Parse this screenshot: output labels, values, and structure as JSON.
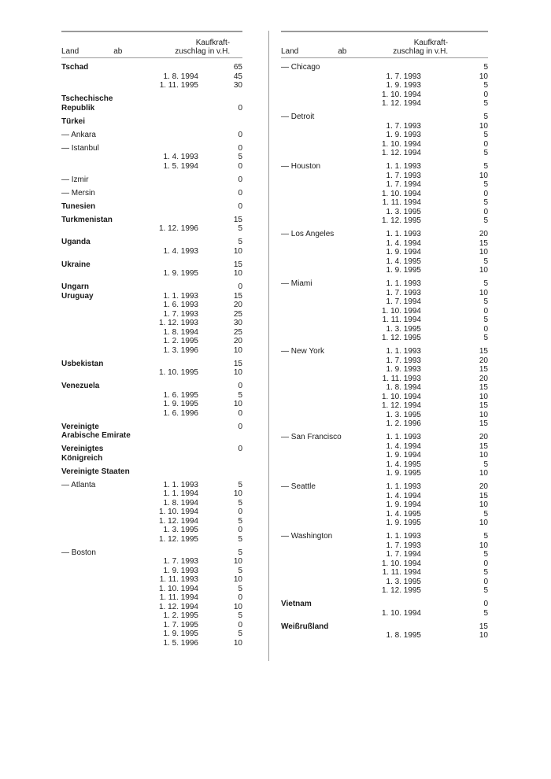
{
  "header": {
    "land": "Land",
    "ab": "ab",
    "val_line1": "Kaufkraft-",
    "val_line2": "zuschlag in v.H."
  },
  "left": [
    {
      "bold": true,
      "rows": [
        {
          "land": "Tschad",
          "ab": "",
          "val": "65"
        },
        {
          "land": "",
          "ab": "1. 8. 1994",
          "val": "45"
        },
        {
          "land": "",
          "ab": "1. 11. 1995",
          "val": "30"
        }
      ]
    },
    {
      "bold": true,
      "rows": [
        {
          "land": "Tschechische",
          "ab": "",
          "val": ""
        },
        {
          "land": "Republik",
          "ab": "",
          "val": "0"
        }
      ]
    },
    {
      "bold": true,
      "rows": [
        {
          "land": "Türkei",
          "ab": "",
          "val": ""
        }
      ]
    },
    {
      "bold": false,
      "rows": [
        {
          "land": "— Ankara",
          "ab": "",
          "val": "0"
        }
      ]
    },
    {
      "bold": false,
      "rows": [
        {
          "land": "— Istanbul",
          "ab": "",
          "val": "0"
        },
        {
          "land": "",
          "ab": "1. 4. 1993",
          "val": "5"
        },
        {
          "land": "",
          "ab": "1. 5. 1994",
          "val": "0"
        }
      ]
    },
    {
      "bold": false,
      "rows": [
        {
          "land": "— Izmir",
          "ab": "",
          "val": "0"
        }
      ]
    },
    {
      "bold": false,
      "rows": [
        {
          "land": "— Mersin",
          "ab": "",
          "val": "0"
        }
      ]
    },
    {
      "bold": true,
      "rows": [
        {
          "land": "Tunesien",
          "ab": "",
          "val": "0"
        }
      ]
    },
    {
      "bold": true,
      "rows": [
        {
          "land": "Turkmenistan",
          "ab": "",
          "val": "15"
        },
        {
          "land": "",
          "ab": "1. 12. 1996",
          "val": "5"
        }
      ]
    },
    {
      "bold": true,
      "rows": [
        {
          "land": "Uganda",
          "ab": "",
          "val": "5"
        },
        {
          "land": "",
          "ab": "1. 4. 1993",
          "val": "10"
        }
      ]
    },
    {
      "bold": true,
      "rows": [
        {
          "land": "Ukraine",
          "ab": "",
          "val": "15"
        },
        {
          "land": "",
          "ab": "1. 9. 1995",
          "val": "10"
        }
      ]
    },
    {
      "bold": true,
      "rows": [
        {
          "land": "Ungarn",
          "ab": "",
          "val": "0"
        },
        {
          "land": "Uruguay",
          "ab": "1. 1. 1993",
          "val": "15"
        },
        {
          "land": "",
          "ab": "1. 6. 1993",
          "val": "20"
        },
        {
          "land": "",
          "ab": "1. 7. 1993",
          "val": "25"
        },
        {
          "land": "",
          "ab": "1. 12. 1993",
          "val": "30"
        },
        {
          "land": "",
          "ab": "1. 8. 1994",
          "val": "25"
        },
        {
          "land": "",
          "ab": "1. 2. 1995",
          "val": "20"
        },
        {
          "land": "",
          "ab": "1. 3. 1996",
          "val": "10"
        }
      ]
    },
    {
      "bold": true,
      "rows": [
        {
          "land": "Usbekistan",
          "ab": "",
          "val": "15"
        },
        {
          "land": "",
          "ab": "1. 10. 1995",
          "val": "10"
        }
      ]
    },
    {
      "bold": true,
      "rows": [
        {
          "land": "Venezuela",
          "ab": "",
          "val": "0"
        },
        {
          "land": "",
          "ab": "1. 6. 1995",
          "val": "5"
        },
        {
          "land": "",
          "ab": "1. 9. 1995",
          "val": "10"
        },
        {
          "land": "",
          "ab": "1. 6. 1996",
          "val": "0"
        }
      ]
    },
    {
      "bold": true,
      "rows": [
        {
          "land": "Vereinigte",
          "ab": "",
          "val": "0"
        },
        {
          "land": "Arabische Emirate",
          "ab": "",
          "val": ""
        }
      ]
    },
    {
      "bold": true,
      "rows": [
        {
          "land": "Vereinigtes",
          "ab": "",
          "val": "0"
        },
        {
          "land": "Königreich",
          "ab": "",
          "val": ""
        }
      ]
    },
    {
      "bold": true,
      "rows": [
        {
          "land": "Vereinigte Staaten",
          "ab": "",
          "val": ""
        }
      ]
    },
    {
      "bold": false,
      "rows": [
        {
          "land": "— Atlanta",
          "ab": "1. 1. 1993",
          "val": "5"
        },
        {
          "land": "",
          "ab": "1. 1. 1994",
          "val": "10"
        },
        {
          "land": "",
          "ab": "1. 8. 1994",
          "val": "5"
        },
        {
          "land": "",
          "ab": "1. 10. 1994",
          "val": "0"
        },
        {
          "land": "",
          "ab": "1. 12. 1994",
          "val": "5"
        },
        {
          "land": "",
          "ab": "1. 3. 1995",
          "val": "0"
        },
        {
          "land": "",
          "ab": "1. 12. 1995",
          "val": "5"
        }
      ]
    },
    {
      "bold": false,
      "rows": [
        {
          "land": "— Boston",
          "ab": "",
          "val": "5"
        },
        {
          "land": "",
          "ab": "1. 7. 1993",
          "val": "10"
        },
        {
          "land": "",
          "ab": "1. 9. 1993",
          "val": "5"
        },
        {
          "land": "",
          "ab": "1. 11. 1993",
          "val": "10"
        },
        {
          "land": "",
          "ab": "1. 10. 1994",
          "val": "5"
        },
        {
          "land": "",
          "ab": "1. 11. 1994",
          "val": "0"
        },
        {
          "land": "",
          "ab": "1. 12. 1994",
          "val": "10"
        },
        {
          "land": "",
          "ab": "1. 2. 1995",
          "val": "5"
        },
        {
          "land": "",
          "ab": "1. 7. 1995",
          "val": "0"
        },
        {
          "land": "",
          "ab": "1. 9. 1995",
          "val": "5"
        },
        {
          "land": "",
          "ab": "1. 5. 1996",
          "val": "10"
        }
      ]
    }
  ],
  "right": [
    {
      "bold": false,
      "rows": [
        {
          "land": "— Chicago",
          "ab": "",
          "val": "5"
        },
        {
          "land": "",
          "ab": "1. 7. 1993",
          "val": "10"
        },
        {
          "land": "",
          "ab": "1. 9. 1993",
          "val": "5"
        },
        {
          "land": "",
          "ab": "1. 10. 1994",
          "val": "0"
        },
        {
          "land": "",
          "ab": "1. 12. 1994",
          "val": "5"
        }
      ]
    },
    {
      "bold": false,
      "rows": [
        {
          "land": "— Detroit",
          "ab": "",
          "val": "5"
        },
        {
          "land": "",
          "ab": "1. 7. 1993",
          "val": "10"
        },
        {
          "land": "",
          "ab": "1. 9. 1993",
          "val": "5"
        },
        {
          "land": "",
          "ab": "1. 10. 1994",
          "val": "0"
        },
        {
          "land": "",
          "ab": "1. 12. 1994",
          "val": "5"
        }
      ]
    },
    {
      "bold": false,
      "rows": [
        {
          "land": "— Houston",
          "ab": "1. 1. 1993",
          "val": "5"
        },
        {
          "land": "",
          "ab": "1. 7. 1993",
          "val": "10"
        },
        {
          "land": "",
          "ab": "1. 7. 1994",
          "val": "5"
        },
        {
          "land": "",
          "ab": "1. 10. 1994",
          "val": "0"
        },
        {
          "land": "",
          "ab": "1. 11. 1994",
          "val": "5"
        },
        {
          "land": "",
          "ab": "1. 3. 1995",
          "val": "0"
        },
        {
          "land": "",
          "ab": "1. 12. 1995",
          "val": "5"
        }
      ]
    },
    {
      "bold": false,
      "rows": [
        {
          "land": "— Los Angeles",
          "ab": "1. 1. 1993",
          "val": "20"
        },
        {
          "land": "",
          "ab": "1. 4. 1994",
          "val": "15"
        },
        {
          "land": "",
          "ab": "1. 9. 1994",
          "val": "10"
        },
        {
          "land": "",
          "ab": "1. 4. 1995",
          "val": "5"
        },
        {
          "land": "",
          "ab": "1. 9. 1995",
          "val": "10"
        }
      ]
    },
    {
      "bold": false,
      "rows": [
        {
          "land": "— Miami",
          "ab": "1. 1. 1993",
          "val": "5"
        },
        {
          "land": "",
          "ab": "1. 7. 1993",
          "val": "10"
        },
        {
          "land": "",
          "ab": "1. 7. 1994",
          "val": "5"
        },
        {
          "land": "",
          "ab": "1. 10. 1994",
          "val": "0"
        },
        {
          "land": "",
          "ab": "1. 11. 1994",
          "val": "5"
        },
        {
          "land": "",
          "ab": "1. 3. 1995",
          "val": "0"
        },
        {
          "land": "",
          "ab": "1. 12. 1995",
          "val": "5"
        }
      ]
    },
    {
      "bold": false,
      "rows": [
        {
          "land": "— New York",
          "ab": "1. 1. 1993",
          "val": "15"
        },
        {
          "land": "",
          "ab": "1. 7. 1993",
          "val": "20"
        },
        {
          "land": "",
          "ab": "1. 9. 1993",
          "val": "15"
        },
        {
          "land": "",
          "ab": "1. 11. 1993",
          "val": "20"
        },
        {
          "land": "",
          "ab": "1. 8. 1994",
          "val": "15"
        },
        {
          "land": "",
          "ab": "1. 10. 1994",
          "val": "10"
        },
        {
          "land": "",
          "ab": "1. 12. 1994",
          "val": "15"
        },
        {
          "land": "",
          "ab": "1. 3. 1995",
          "val": "10"
        },
        {
          "land": "",
          "ab": "1. 2. 1996",
          "val": "15"
        }
      ]
    },
    {
      "bold": false,
      "rows": [
        {
          "land": "— San Francisco",
          "ab": "1. 1. 1993",
          "val": "20"
        },
        {
          "land": "",
          "ab": "1. 4. 1994",
          "val": "15"
        },
        {
          "land": "",
          "ab": "1. 9. 1994",
          "val": "10"
        },
        {
          "land": "",
          "ab": "1. 4. 1995",
          "val": "5"
        },
        {
          "land": "",
          "ab": "1. 9. 1995",
          "val": "10"
        }
      ]
    },
    {
      "bold": false,
      "rows": [
        {
          "land": "— Seattle",
          "ab": "1. 1. 1993",
          "val": "20"
        },
        {
          "land": "",
          "ab": "1. 4. 1994",
          "val": "15"
        },
        {
          "land": "",
          "ab": "1. 9. 1994",
          "val": "10"
        },
        {
          "land": "",
          "ab": "1. 4. 1995",
          "val": "5"
        },
        {
          "land": "",
          "ab": "1. 9. 1995",
          "val": "10"
        }
      ]
    },
    {
      "bold": false,
      "rows": [
        {
          "land": "— Washington",
          "ab": "1. 1. 1993",
          "val": "5"
        },
        {
          "land": "",
          "ab": "1. 7. 1993",
          "val": "10"
        },
        {
          "land": "",
          "ab": "1. 7. 1994",
          "val": "5"
        },
        {
          "land": "",
          "ab": "1. 10. 1994",
          "val": "0"
        },
        {
          "land": "",
          "ab": "1. 11. 1994",
          "val": "5"
        },
        {
          "land": "",
          "ab": "1. 3. 1995",
          "val": "0"
        },
        {
          "land": "",
          "ab": "1. 12. 1995",
          "val": "5"
        }
      ]
    },
    {
      "bold": true,
      "rows": [
        {
          "land": "Vietnam",
          "ab": "",
          "val": "0"
        },
        {
          "land": "",
          "ab": "1. 10. 1994",
          "val": "5"
        }
      ]
    },
    {
      "bold": true,
      "rows": [
        {
          "land": "Weißrußland",
          "ab": "",
          "val": "15"
        },
        {
          "land": "",
          "ab": "1. 8. 1995",
          "val": "10"
        }
      ]
    }
  ]
}
